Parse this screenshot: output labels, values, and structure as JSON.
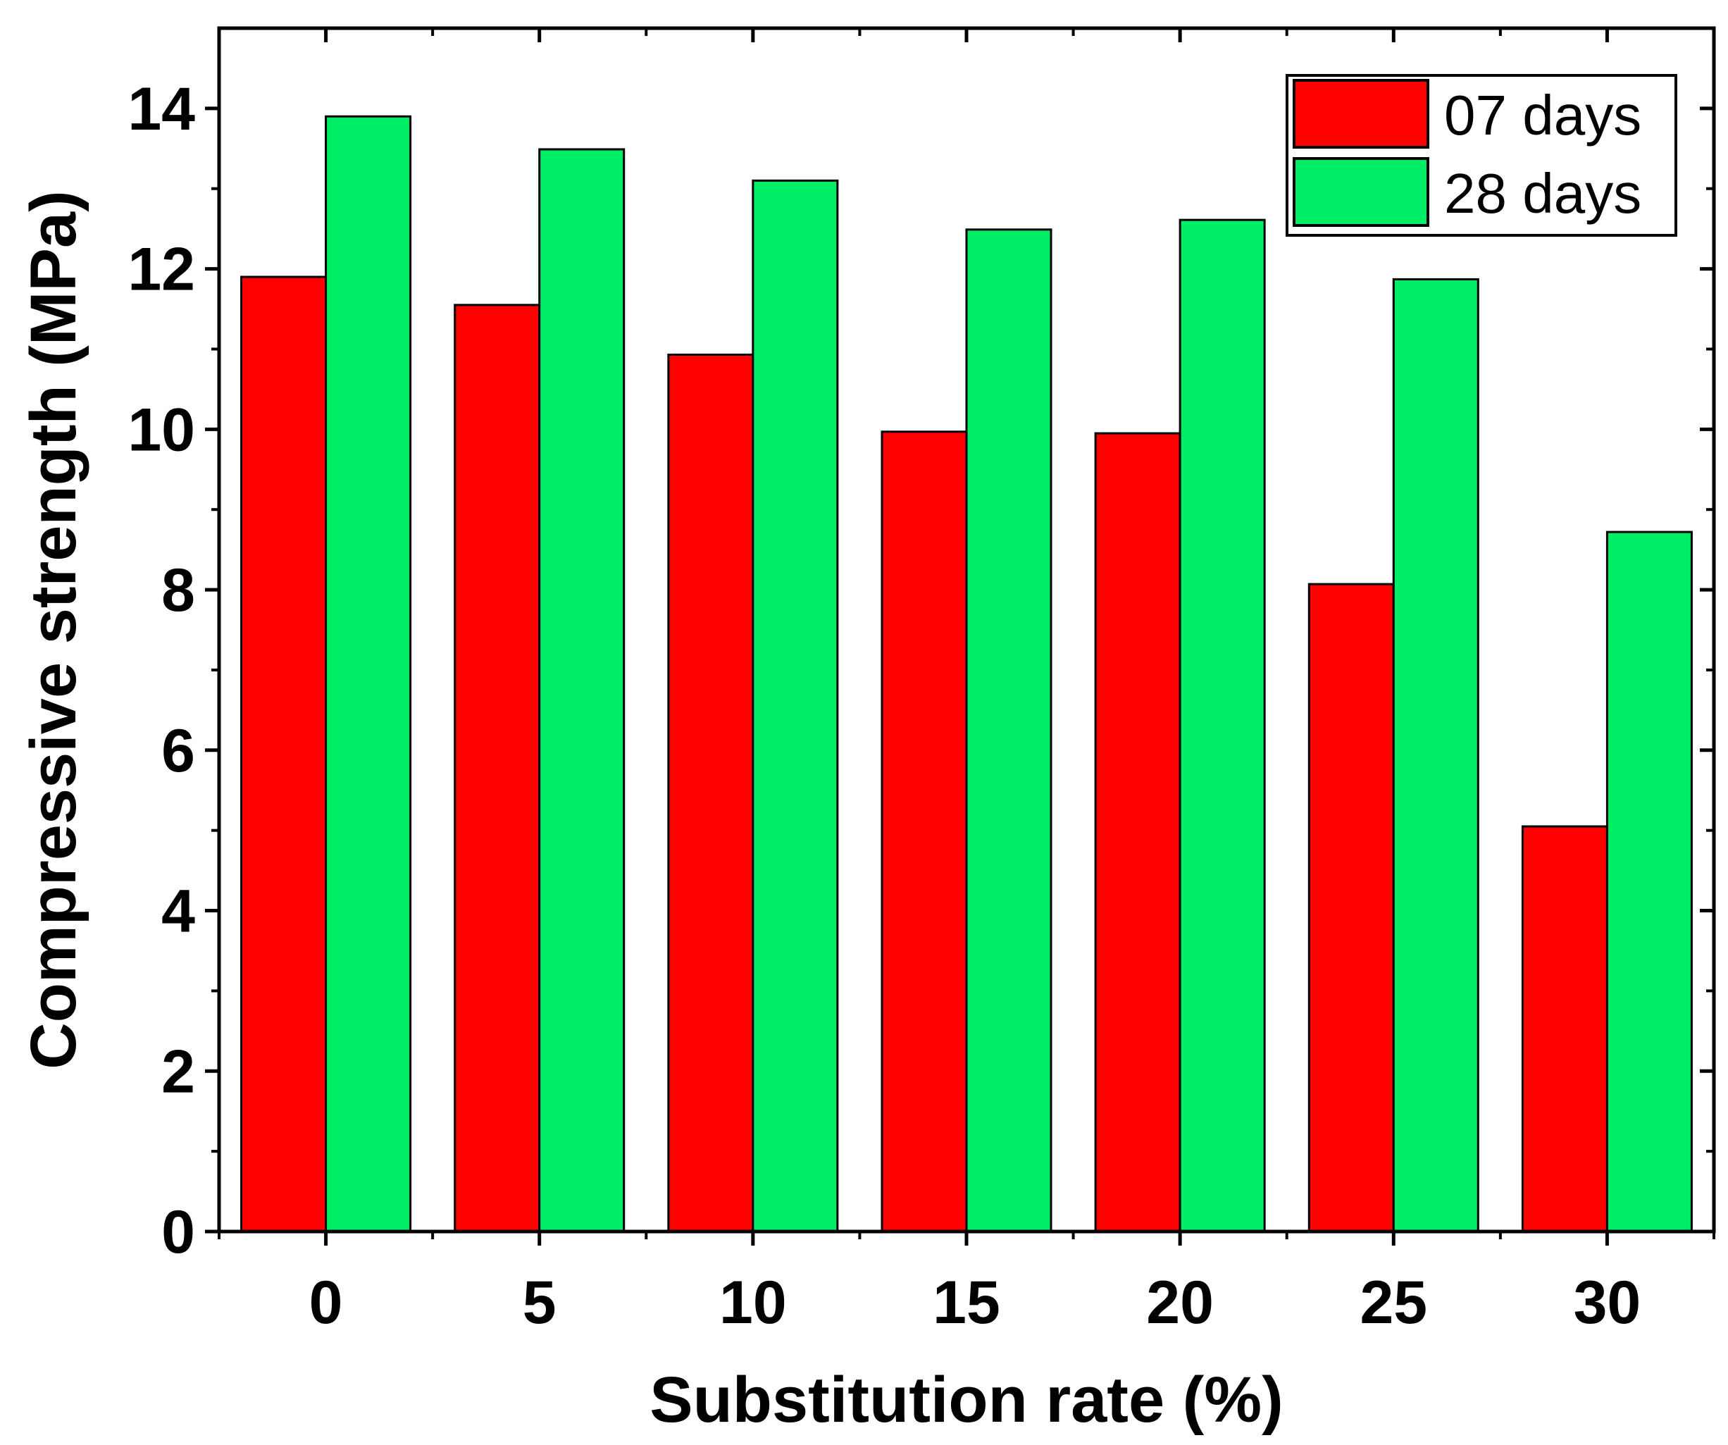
{
  "chart_data": {
    "type": "bar",
    "title": "",
    "xlabel": "Substitution rate (%)",
    "ylabel": "Compressive strength (MPa)",
    "categories": [
      "0",
      "5",
      "10",
      "15",
      "20",
      "25",
      "30"
    ],
    "series": [
      {
        "name": "07 days",
        "color": "#ff0000",
        "values": [
          11.9,
          11.55,
          10.93,
          9.97,
          9.95,
          8.07,
          5.05
        ]
      },
      {
        "name": "28 days",
        "color": "#00ee66",
        "values": [
          13.9,
          13.49,
          13.1,
          12.49,
          12.61,
          11.87,
          8.72
        ]
      }
    ],
    "ylim": [
      0,
      15
    ],
    "yticks": [
      "0",
      "2",
      "4",
      "6",
      "8",
      "10",
      "12",
      "14"
    ],
    "grid": false,
    "legend_position": "top-right"
  }
}
